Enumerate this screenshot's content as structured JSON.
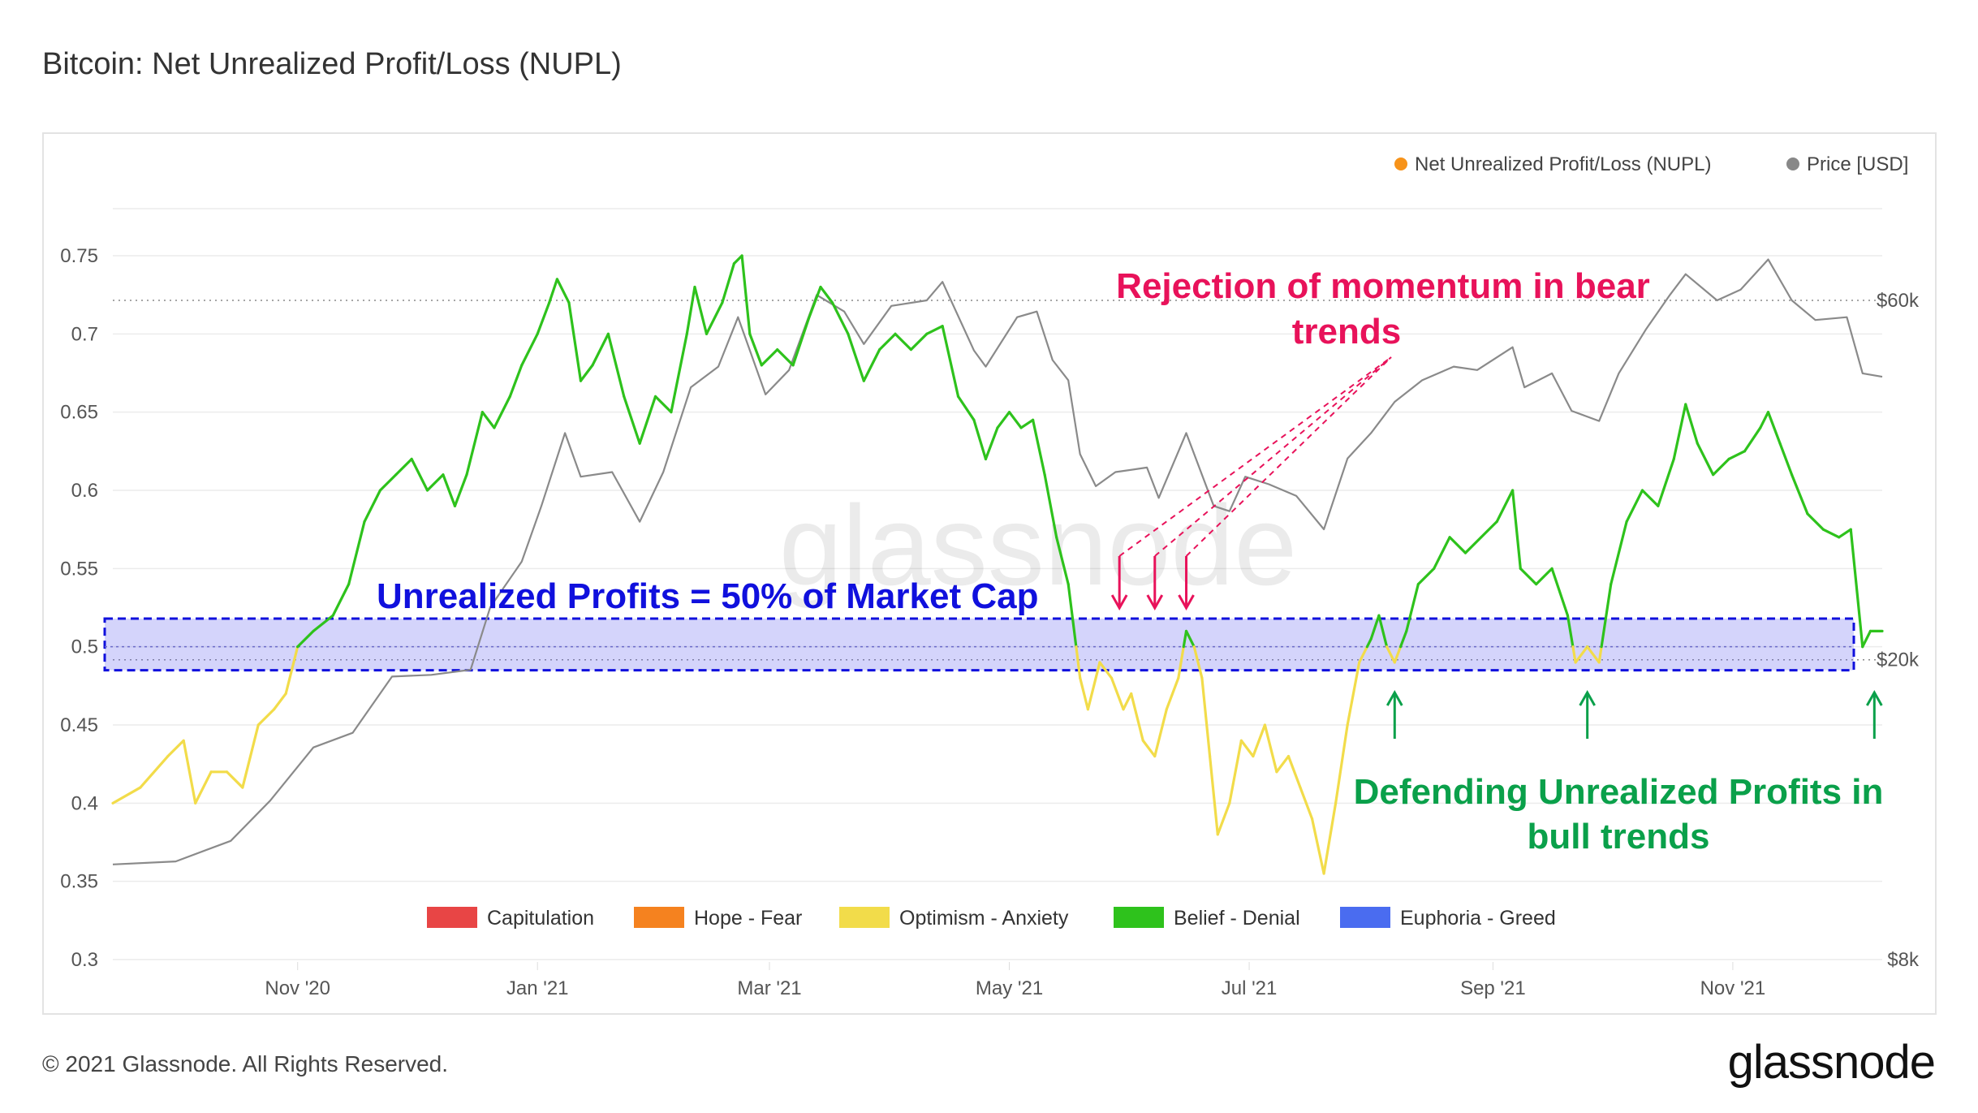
{
  "title": "Bitcoin: Net Unrealized Profit/Loss (NUPL)",
  "footer": {
    "copyright": "© 2021 Glassnode. All Rights Reserved.",
    "logo": "glassnode",
    "watermark": "glassnode"
  },
  "legend": {
    "top": [
      {
        "label": "Net Unrealized Profit/Loss (NUPL)",
        "color": "#f7931a"
      },
      {
        "label": "Price [USD]",
        "color": "#888888"
      }
    ],
    "bottom": [
      {
        "label": "Capitulation",
        "color": "#e84545"
      },
      {
        "label": "Hope - Fear",
        "color": "#f5821f"
      },
      {
        "label": "Optimism - Anxiety",
        "color": "#f2dc4a"
      },
      {
        "label": "Belief - Denial",
        "color": "#2ec21c"
      },
      {
        "label": "Euphoria - Greed",
        "color": "#4a6cf0"
      }
    ]
  },
  "annotations": {
    "band_label": "Unrealized Profits = 50% of Market Cap",
    "band_color": "#1010dd",
    "bear_label_line1": "Rejection of momentum in bear",
    "bear_label_line2": "trends",
    "bear_color": "#e8125a",
    "bull_label_line1": "Defending Unrealized Profits in",
    "bull_label_line2": "bull trends",
    "bull_color": "#0aa04a"
  },
  "chart_data": {
    "type": "line",
    "x_range": [
      "2020-09-15",
      "2021-12-09"
    ],
    "x_ticks": [
      {
        "label": "Nov '20",
        "date": "2020-11-01"
      },
      {
        "label": "Jan '21",
        "date": "2021-01-01"
      },
      {
        "label": "Mar '21",
        "date": "2021-03-01"
      },
      {
        "label": "May '21",
        "date": "2021-05-01"
      },
      {
        "label": "Jul '21",
        "date": "2021-07-01"
      },
      {
        "label": "Sep '21",
        "date": "2021-09-01"
      },
      {
        "label": "Nov '21",
        "date": "2021-11-01"
      }
    ],
    "y_left": {
      "min": 0.3,
      "max": 0.75,
      "ticks": [
        "0.75",
        "0.7",
        "0.65",
        "0.6",
        "0.55",
        "0.5",
        "0.45",
        "0.4",
        "0.35",
        "0.3"
      ]
    },
    "y_right": {
      "scale": "log",
      "ticks": [
        {
          "label": "$60k",
          "value": 60000
        },
        {
          "label": "$20k",
          "value": 20000
        },
        {
          "label": "$8k",
          "value": 8000
        }
      ]
    },
    "band": {
      "from": 0.485,
      "to": 0.518
    },
    "nupl_thresholds": {
      "optimism_below": 0.5
    },
    "series": [
      {
        "name": "Net Unrealized Profit/Loss (NUPL)",
        "points": [
          [
            "2020-09-15",
            0.4
          ],
          [
            "2020-09-22",
            0.41
          ],
          [
            "2020-09-29",
            0.43
          ],
          [
            "2020-10-03",
            0.44
          ],
          [
            "2020-10-06",
            0.4
          ],
          [
            "2020-10-10",
            0.42
          ],
          [
            "2020-10-14",
            0.42
          ],
          [
            "2020-10-18",
            0.41
          ],
          [
            "2020-10-22",
            0.45
          ],
          [
            "2020-10-26",
            0.46
          ],
          [
            "2020-10-29",
            0.47
          ],
          [
            "2020-11-01",
            0.5
          ],
          [
            "2020-11-05",
            0.51
          ],
          [
            "2020-11-10",
            0.52
          ],
          [
            "2020-11-14",
            0.54
          ],
          [
            "2020-11-18",
            0.58
          ],
          [
            "2020-11-22",
            0.6
          ],
          [
            "2020-11-26",
            0.61
          ],
          [
            "2020-11-30",
            0.62
          ],
          [
            "2020-12-04",
            0.6
          ],
          [
            "2020-12-08",
            0.61
          ],
          [
            "2020-12-11",
            0.59
          ],
          [
            "2020-12-14",
            0.61
          ],
          [
            "2020-12-18",
            0.65
          ],
          [
            "2020-12-21",
            0.64
          ],
          [
            "2020-12-25",
            0.66
          ],
          [
            "2020-12-28",
            0.68
          ],
          [
            "2021-01-01",
            0.7
          ],
          [
            "2021-01-04",
            0.72
          ],
          [
            "2021-01-06",
            0.735
          ],
          [
            "2021-01-09",
            0.72
          ],
          [
            "2021-01-12",
            0.67
          ],
          [
            "2021-01-15",
            0.68
          ],
          [
            "2021-01-19",
            0.7
          ],
          [
            "2021-01-23",
            0.66
          ],
          [
            "2021-01-27",
            0.63
          ],
          [
            "2021-01-31",
            0.66
          ],
          [
            "2021-02-04",
            0.65
          ],
          [
            "2021-02-08",
            0.7
          ],
          [
            "2021-02-10",
            0.73
          ],
          [
            "2021-02-13",
            0.7
          ],
          [
            "2021-02-17",
            0.72
          ],
          [
            "2021-02-20",
            0.745
          ],
          [
            "2021-02-22",
            0.75
          ],
          [
            "2021-02-24",
            0.7
          ],
          [
            "2021-02-27",
            0.68
          ],
          [
            "2021-03-03",
            0.69
          ],
          [
            "2021-03-07",
            0.68
          ],
          [
            "2021-03-11",
            0.71
          ],
          [
            "2021-03-14",
            0.73
          ],
          [
            "2021-03-17",
            0.72
          ],
          [
            "2021-03-21",
            0.7
          ],
          [
            "2021-03-25",
            0.67
          ],
          [
            "2021-03-29",
            0.69
          ],
          [
            "2021-04-02",
            0.7
          ],
          [
            "2021-04-06",
            0.69
          ],
          [
            "2021-04-10",
            0.7
          ],
          [
            "2021-04-14",
            0.705
          ],
          [
            "2021-04-18",
            0.66
          ],
          [
            "2021-04-22",
            0.645
          ],
          [
            "2021-04-25",
            0.62
          ],
          [
            "2021-04-28",
            0.64
          ],
          [
            "2021-05-01",
            0.65
          ],
          [
            "2021-05-04",
            0.64
          ],
          [
            "2021-05-07",
            0.645
          ],
          [
            "2021-05-10",
            0.61
          ],
          [
            "2021-05-13",
            0.57
          ],
          [
            "2021-05-16",
            0.54
          ],
          [
            "2021-05-19",
            0.48
          ],
          [
            "2021-05-21",
            0.46
          ],
          [
            "2021-05-24",
            0.49
          ],
          [
            "2021-05-27",
            0.48
          ],
          [
            "2021-05-30",
            0.46
          ],
          [
            "2021-06-01",
            0.47
          ],
          [
            "2021-06-04",
            0.44
          ],
          [
            "2021-06-07",
            0.43
          ],
          [
            "2021-06-10",
            0.46
          ],
          [
            "2021-06-13",
            0.48
          ],
          [
            "2021-06-15",
            0.51
          ],
          [
            "2021-06-17",
            0.5
          ],
          [
            "2021-06-19",
            0.48
          ],
          [
            "2021-06-21",
            0.43
          ],
          [
            "2021-06-23",
            0.38
          ],
          [
            "2021-06-26",
            0.4
          ],
          [
            "2021-06-29",
            0.44
          ],
          [
            "2021-07-02",
            0.43
          ],
          [
            "2021-07-05",
            0.45
          ],
          [
            "2021-07-08",
            0.42
          ],
          [
            "2021-07-11",
            0.43
          ],
          [
            "2021-07-14",
            0.41
          ],
          [
            "2021-07-17",
            0.39
          ],
          [
            "2021-07-20",
            0.355
          ],
          [
            "2021-07-23",
            0.4
          ],
          [
            "2021-07-26",
            0.45
          ],
          [
            "2021-07-29",
            0.49
          ],
          [
            "2021-08-01",
            0.505
          ],
          [
            "2021-08-03",
            0.52
          ],
          [
            "2021-08-05",
            0.5
          ],
          [
            "2021-08-07",
            0.49
          ],
          [
            "2021-08-10",
            0.51
          ],
          [
            "2021-08-13",
            0.54
          ],
          [
            "2021-08-17",
            0.55
          ],
          [
            "2021-08-21",
            0.57
          ],
          [
            "2021-08-25",
            0.56
          ],
          [
            "2021-08-29",
            0.57
          ],
          [
            "2021-09-02",
            0.58
          ],
          [
            "2021-09-06",
            0.6
          ],
          [
            "2021-09-08",
            0.55
          ],
          [
            "2021-09-12",
            0.54
          ],
          [
            "2021-09-16",
            0.55
          ],
          [
            "2021-09-20",
            0.52
          ],
          [
            "2021-09-22",
            0.49
          ],
          [
            "2021-09-25",
            0.5
          ],
          [
            "2021-09-28",
            0.49
          ],
          [
            "2021-10-01",
            0.54
          ],
          [
            "2021-10-05",
            0.58
          ],
          [
            "2021-10-09",
            0.6
          ],
          [
            "2021-10-13",
            0.59
          ],
          [
            "2021-10-17",
            0.62
          ],
          [
            "2021-10-20",
            0.655
          ],
          [
            "2021-10-23",
            0.63
          ],
          [
            "2021-10-27",
            0.61
          ],
          [
            "2021-10-31",
            0.62
          ],
          [
            "2021-11-04",
            0.625
          ],
          [
            "2021-11-08",
            0.64
          ],
          [
            "2021-11-10",
            0.65
          ],
          [
            "2021-11-13",
            0.63
          ],
          [
            "2021-11-16",
            0.61
          ],
          [
            "2021-11-20",
            0.585
          ],
          [
            "2021-11-24",
            0.575
          ],
          [
            "2021-11-28",
            0.57
          ],
          [
            "2021-12-01",
            0.575
          ],
          [
            "2021-12-04",
            0.5
          ],
          [
            "2021-12-06",
            0.51
          ],
          [
            "2021-12-09",
            0.51
          ]
        ]
      },
      {
        "name": "Price [USD]",
        "points": [
          [
            "2020-09-15",
            10700
          ],
          [
            "2020-10-01",
            10800
          ],
          [
            "2020-10-15",
            11500
          ],
          [
            "2020-10-25",
            13000
          ],
          [
            "2020-11-05",
            15300
          ],
          [
            "2020-11-15",
            16000
          ],
          [
            "2020-11-25",
            19000
          ],
          [
            "2020-12-05",
            19100
          ],
          [
            "2020-12-15",
            19400
          ],
          [
            "2020-12-20",
            23500
          ],
          [
            "2020-12-28",
            27000
          ],
          [
            "2021-01-02",
            32000
          ],
          [
            "2021-01-08",
            40000
          ],
          [
            "2021-01-12",
            35000
          ],
          [
            "2021-01-20",
            35500
          ],
          [
            "2021-01-27",
            30500
          ],
          [
            "2021-02-02",
            35500
          ],
          [
            "2021-02-09",
            46000
          ],
          [
            "2021-02-16",
            49000
          ],
          [
            "2021-02-21",
            57000
          ],
          [
            "2021-02-28",
            45000
          ],
          [
            "2021-03-06",
            48500
          ],
          [
            "2021-03-13",
            61000
          ],
          [
            "2021-03-20",
            58000
          ],
          [
            "2021-03-25",
            52500
          ],
          [
            "2021-04-01",
            59000
          ],
          [
            "2021-04-10",
            60000
          ],
          [
            "2021-04-14",
            63500
          ],
          [
            "2021-04-22",
            51500
          ],
          [
            "2021-04-25",
            49000
          ],
          [
            "2021-05-03",
            57000
          ],
          [
            "2021-05-08",
            58000
          ],
          [
            "2021-05-12",
            50000
          ],
          [
            "2021-05-16",
            47000
          ],
          [
            "2021-05-19",
            37500
          ],
          [
            "2021-05-23",
            34000
          ],
          [
            "2021-05-28",
            35500
          ],
          [
            "2021-06-05",
            36000
          ],
          [
            "2021-06-08",
            32800
          ],
          [
            "2021-06-15",
            40000
          ],
          [
            "2021-06-22",
            32000
          ],
          [
            "2021-06-26",
            31500
          ],
          [
            "2021-06-30",
            35000
          ],
          [
            "2021-07-06",
            34200
          ],
          [
            "2021-07-13",
            33000
          ],
          [
            "2021-07-20",
            29800
          ],
          [
            "2021-07-26",
            37000
          ],
          [
            "2021-08-01",
            40000
          ],
          [
            "2021-08-07",
            44000
          ],
          [
            "2021-08-14",
            47000
          ],
          [
            "2021-08-22",
            49000
          ],
          [
            "2021-08-28",
            48500
          ],
          [
            "2021-09-06",
            52000
          ],
          [
            "2021-09-09",
            46000
          ],
          [
            "2021-09-16",
            48000
          ],
          [
            "2021-09-21",
            42800
          ],
          [
            "2021-09-28",
            41500
          ],
          [
            "2021-10-03",
            48000
          ],
          [
            "2021-10-10",
            55000
          ],
          [
            "2021-10-16",
            61000
          ],
          [
            "2021-10-20",
            65000
          ],
          [
            "2021-10-28",
            60000
          ],
          [
            "2021-11-03",
            62000
          ],
          [
            "2021-11-10",
            68000
          ],
          [
            "2021-11-16",
            60000
          ],
          [
            "2021-11-22",
            56500
          ],
          [
            "2021-11-30",
            57000
          ],
          [
            "2021-12-04",
            48000
          ],
          [
            "2021-12-09",
            47500
          ]
        ]
      }
    ]
  }
}
